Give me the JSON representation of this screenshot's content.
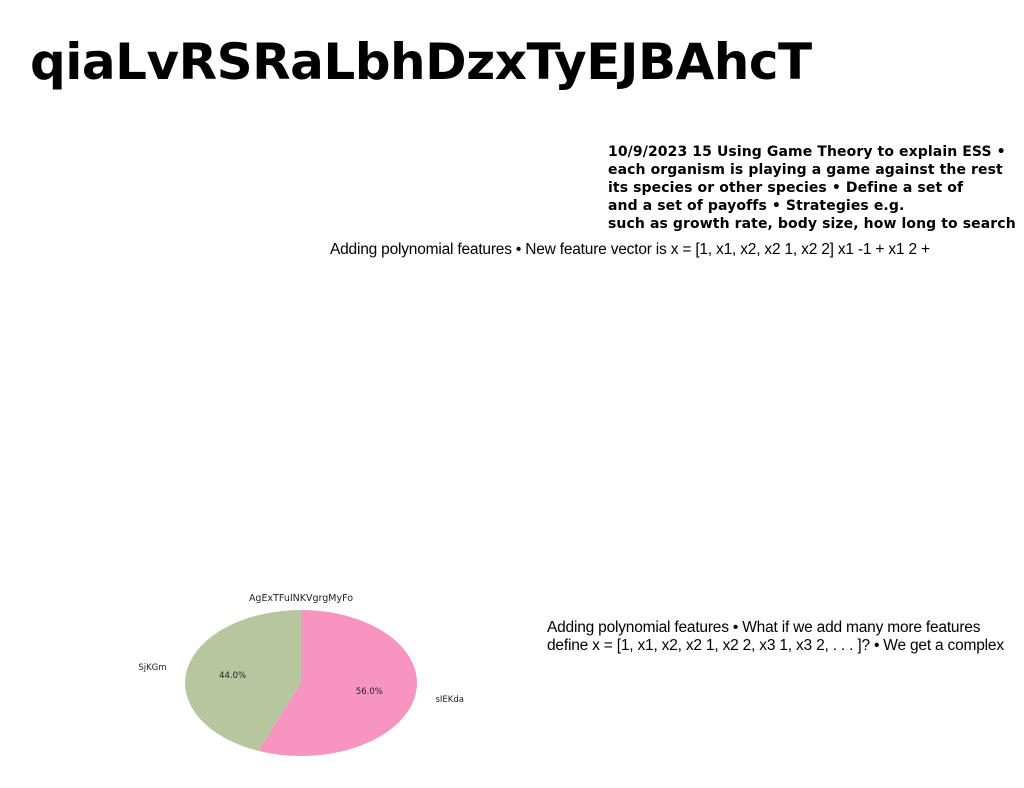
{
  "title": "qiaLvRSRaLbhDzxTyEJBAhcT",
  "game_theory_note": {
    "lines": [
      "10/9/2023 15 Using Game Theory to explain ESS •",
      "each organism is playing a game against the rest",
      "its species or other species • Define a set of",
      "and a set of payoffs • Strategies e.g.",
      "such as growth rate, body size, how long to search"
    ]
  },
  "polynomial_note_1": {
    "text": "Adding polynomial features • New feature vector is x = [1, x1, x2, x2 1, x2 2] x1 -1 + x1 2 +"
  },
  "polynomial_note_2": {
    "lines": [
      "Adding polynomial features • What if we add many more features",
      "define x = [1, x1, x2, x2 1, x2 2, x3 1, x3 2, . . . ]? • We get a complex"
    ]
  },
  "chart_data": {
    "type": "pie",
    "title": "AgExTFuINKVgrgMyFo",
    "slices": [
      {
        "label": "sIEKda",
        "value": 56.0,
        "display": "56.0%",
        "color": "#f894c0"
      },
      {
        "label": "SjKGm",
        "value": 44.0,
        "display": "44.0%",
        "color": "#b8c6a0"
      }
    ],
    "start_angle_deg": 90,
    "direction": "clockwise",
    "legend": "none"
  }
}
